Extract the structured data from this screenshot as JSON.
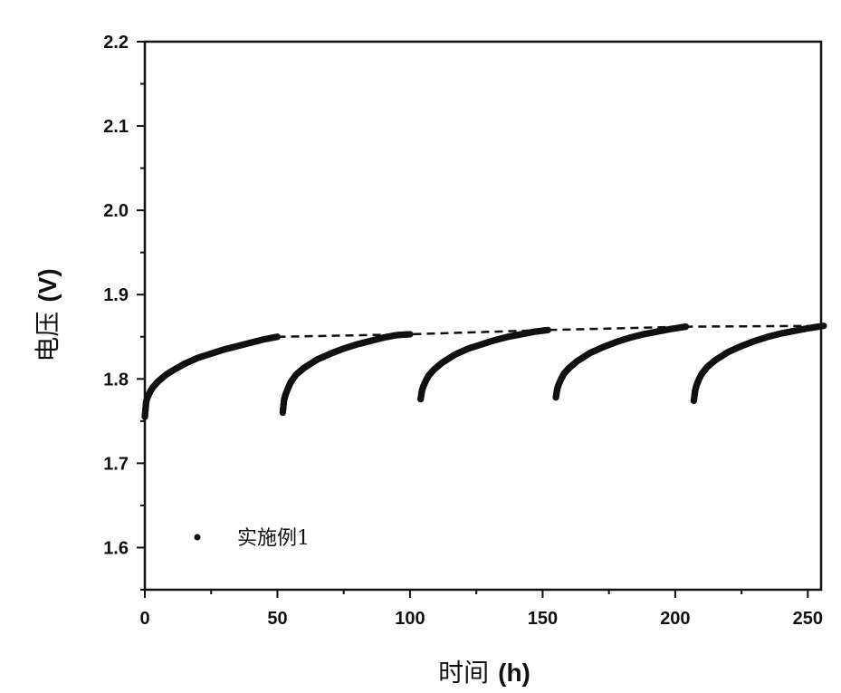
{
  "chart_data": {
    "type": "scatter",
    "xlabel": "时间",
    "xlabel_unit": "(h)",
    "ylabel": "电压",
    "ylabel_unit": "(V)",
    "xlim": [
      0,
      255
    ],
    "ylim": [
      1.55,
      2.2
    ],
    "x_ticks": [
      0,
      50,
      100,
      150,
      200,
      250
    ],
    "x_tick_labels": [
      "0",
      "50",
      "100",
      "150",
      "200",
      "250"
    ],
    "y_ticks": [
      1.6,
      1.7,
      1.8,
      1.9,
      2.0,
      2.1,
      2.2
    ],
    "y_tick_labels": [
      "1.6",
      "1.7",
      "1.8",
      "1.9",
      "2.0",
      "2.1",
      "2.2"
    ],
    "grid": false,
    "legend": {
      "position": "bottom-left",
      "entries": [
        "实施例1"
      ]
    },
    "series": [
      {
        "name": "实施例1",
        "marker": "circle",
        "color": "#111111",
        "segments": [
          {
            "x": [
              0,
              0.5,
              1,
              2,
              3,
              5,
              8,
              10,
              15,
              20,
              25,
              30,
              35,
              40,
              45,
              50
            ],
            "y": [
              1.755,
              1.773,
              1.778,
              1.785,
              1.79,
              1.797,
              1.805,
              1.809,
              1.818,
              1.825,
              1.83,
              1.835,
              1.839,
              1.843,
              1.847,
              1.85
            ]
          },
          {
            "x": [
              52,
              52.5,
              53,
              54,
              55,
              57,
              60,
              65,
              70,
              75,
              80,
              85,
              90,
              95,
              100
            ],
            "y": [
              1.76,
              1.775,
              1.781,
              1.789,
              1.796,
              1.805,
              1.813,
              1.823,
              1.83,
              1.836,
              1.841,
              1.845,
              1.849,
              1.852,
              1.853
            ]
          },
          {
            "x": [
              104,
              104.5,
              105,
              106,
              107,
              109,
              112,
              117,
              122,
              127,
              132,
              137,
              142,
              147,
              152
            ],
            "y": [
              1.776,
              1.786,
              1.791,
              1.798,
              1.804,
              1.811,
              1.819,
              1.829,
              1.836,
              1.841,
              1.846,
              1.85,
              1.853,
              1.856,
              1.858
            ]
          },
          {
            "x": [
              155,
              155.5,
              156,
              157,
              158,
              160,
              163,
              168,
              173,
              178,
              183,
              188,
              193,
              198,
              204
            ],
            "y": [
              1.778,
              1.788,
              1.793,
              1.8,
              1.806,
              1.813,
              1.821,
              1.831,
              1.838,
              1.844,
              1.849,
              1.853,
              1.856,
              1.859,
              1.862
            ]
          },
          {
            "x": [
              207,
              207.5,
              208,
              209,
              210,
              212,
              215,
              220,
              225,
              230,
              235,
              240,
              245,
              250,
              256
            ],
            "y": [
              1.774,
              1.786,
              1.792,
              1.8,
              1.806,
              1.814,
              1.822,
              1.832,
              1.839,
              1.845,
              1.85,
              1.854,
              1.857,
              1.86,
              1.863
            ]
          }
        ]
      },
      {
        "type": "line",
        "style": "dashed",
        "color": "#111111",
        "x": [
          50,
          100,
          152,
          204,
          256
        ],
        "y": [
          1.85,
          1.853,
          1.858,
          1.862,
          1.863
        ]
      }
    ]
  }
}
